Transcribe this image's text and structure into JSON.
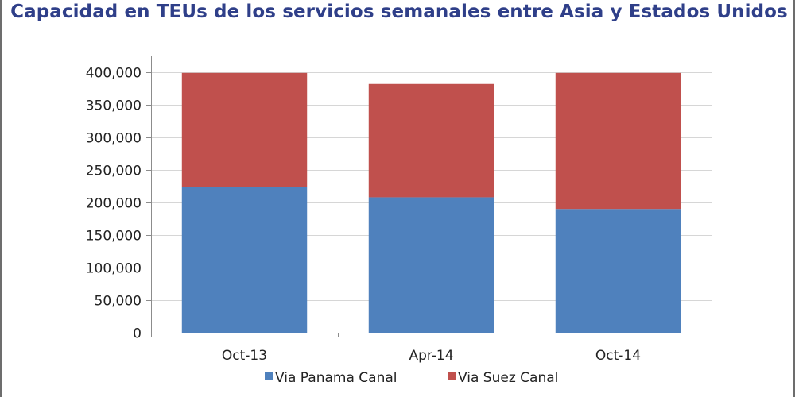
{
  "chart_data": {
    "type": "bar",
    "stacked": true,
    "title": "Capacidad en TEUs de los servicios semanales entre Asia y Estados Unidos",
    "categories": [
      "Oct-13",
      "Apr-14",
      "Oct-14"
    ],
    "series": [
      {
        "name": "Via Panama Canal",
        "color": "#4f81bd",
        "values": [
          224000,
          208000,
          190000
        ]
      },
      {
        "name": "Via Suez Canal",
        "color": "#c0504d",
        "values": [
          175000,
          174000,
          209000
        ]
      }
    ],
    "ylim": [
      0,
      400000
    ],
    "yticks": [
      0,
      50000,
      100000,
      150000,
      200000,
      250000,
      300000,
      350000,
      400000
    ],
    "ytick_labels": [
      "0",
      "50,000",
      "100,000",
      "150,000",
      "200,000",
      "250,000",
      "300,000",
      "350,000",
      "400,000"
    ],
    "xlabel": "",
    "ylabel": "",
    "grid": true,
    "legend_position": "bottom"
  }
}
